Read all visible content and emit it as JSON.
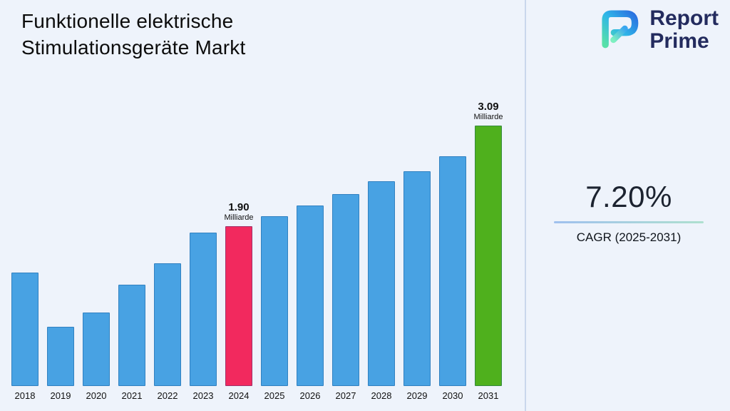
{
  "title": {
    "line1": "Funktionelle elektrische",
    "line2": "Stimulationsgeräte Markt"
  },
  "logo": {
    "word1": "Report",
    "word2": "Prime"
  },
  "cagr": {
    "value": "7.20%",
    "label": "CAGR (2025-2031)"
  },
  "chart_data": {
    "type": "bar",
    "title": "Funktionelle elektrische Stimulationsgeräte Markt",
    "unit": "Milliarde",
    "categories": [
      "2018",
      "2019",
      "2020",
      "2021",
      "2022",
      "2023",
      "2024",
      "2025",
      "2026",
      "2027",
      "2028",
      "2029",
      "2030",
      "2031"
    ],
    "values": [
      1.35,
      0.7,
      0.87,
      1.2,
      1.46,
      1.82,
      1.9,
      2.02,
      2.14,
      2.28,
      2.43,
      2.55,
      2.73,
      3.09
    ],
    "highlight_year": "2024",
    "final_year": "2031",
    "annotations": [
      {
        "year": "2024",
        "value_label": "1.90",
        "unit_label": "Milliarde"
      },
      {
        "year": "2031",
        "value_label": "3.09",
        "unit_label": "Milliarde"
      }
    ],
    "colors": {
      "bar": "#48a2e3",
      "highlight": "#f2295e",
      "final": "#4fb01d"
    },
    "ylim": [
      0,
      3.5
    ],
    "grid": false,
    "legend": false
  }
}
